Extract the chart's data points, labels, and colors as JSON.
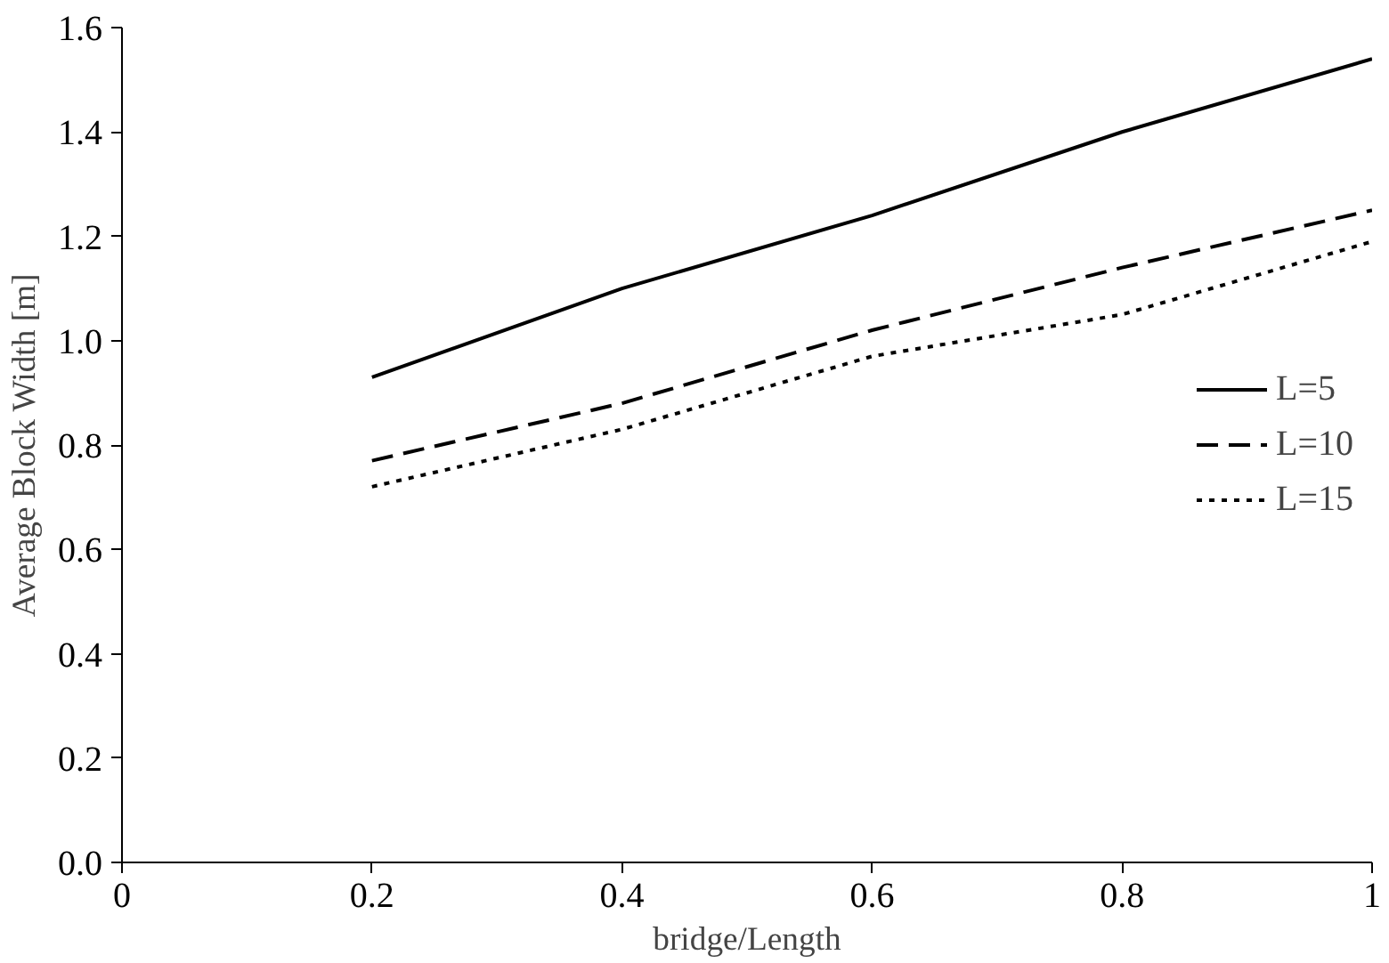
{
  "chart_data": {
    "type": "line",
    "xlabel": "bridge/Length",
    "ylabel": "Average Block Width [m]",
    "x": [
      0.2,
      0.4,
      0.6,
      0.8,
      1.0
    ],
    "series": [
      {
        "name": "L=5",
        "color": "#000000",
        "line_style": "solid",
        "values": [
          0.93,
          1.1,
          1.24,
          1.4,
          1.54
        ]
      },
      {
        "name": "L=10",
        "color": "#000000",
        "line_style": "dashed",
        "values": [
          0.77,
          0.88,
          1.02,
          1.14,
          1.25
        ]
      },
      {
        "name": "L=15",
        "color": "#000000",
        "line_style": "dotted",
        "values": [
          0.72,
          0.83,
          0.97,
          1.05,
          1.19
        ]
      }
    ],
    "xlim": [
      0,
      1
    ],
    "xticks": [
      0,
      0.2,
      0.4,
      0.6,
      0.8,
      1
    ],
    "ylim": [
      0,
      1.6
    ],
    "yticks": [
      {
        "value": 0,
        "label": "0.0"
      },
      {
        "value": 0.2,
        "label": "0.2"
      },
      {
        "value": 0.4,
        "label": "0.4"
      },
      {
        "value": 0.6,
        "label": "0.6"
      },
      {
        "value": 0.8,
        "label": "0.8"
      },
      {
        "value": 1.0,
        "label": "1.0"
      },
      {
        "value": 1.2,
        "label": "1.2"
      },
      {
        "value": 1.4,
        "label": "1.4"
      },
      {
        "value": 1.6,
        "label": "1.6"
      }
    ],
    "grid": false,
    "legend": "right",
    "marker": "none"
  }
}
